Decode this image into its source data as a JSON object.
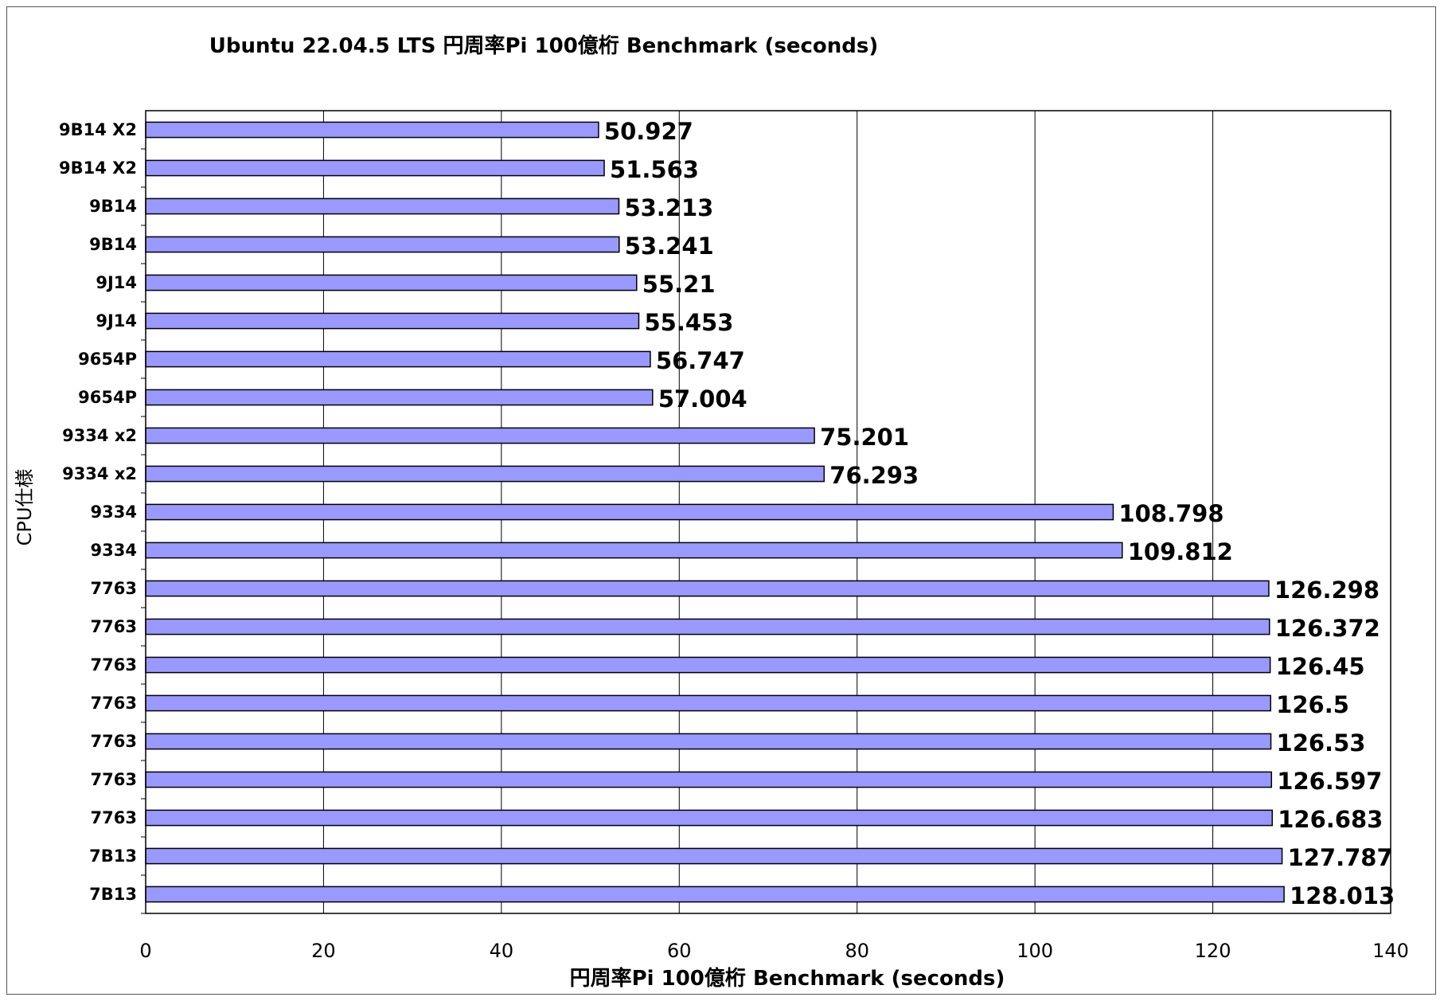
{
  "chart_data": {
    "type": "bar",
    "orientation": "horizontal",
    "title": "Ubuntu 22.04.5 LTS 円周率Pi  100億桁 Benchmark (seconds)",
    "xlabel": "円周率Pi 100億桁 Benchmark (seconds)",
    "ylabel": "CPU仕様",
    "xlim": [
      0,
      140
    ],
    "xticks": [
      0,
      20,
      40,
      60,
      80,
      100,
      120,
      140
    ],
    "grid": "vertical",
    "legend": "none",
    "bar_color": "#9999ff",
    "categories": [
      "9B14 X2",
      "9B14 X2",
      "9B14",
      "9B14",
      "9J14",
      "9J14",
      "9654P",
      "9654P",
      "9334 x2",
      "9334 x2",
      "9334",
      "9334",
      "7763",
      "7763",
      "7763",
      "7763",
      "7763",
      "7763",
      "7763",
      "7B13",
      "7B13"
    ],
    "values": [
      50.927,
      51.563,
      53.213,
      53.241,
      55.21,
      55.453,
      56.747,
      57.004,
      75.201,
      76.293,
      108.798,
      109.812,
      126.298,
      126.372,
      126.45,
      126.5,
      126.53,
      126.597,
      126.683,
      127.787,
      128.013
    ],
    "data_labels": [
      "50.927",
      "51.563",
      "53.213",
      "53.241",
      "55.21",
      "55.453",
      "56.747",
      "57.004",
      "75.201",
      "76.293",
      "108.798",
      "109.812",
      "126.298",
      "126.372",
      "126.45",
      "126.5",
      "126.53",
      "126.597",
      "126.683",
      "127.787",
      "128.013"
    ]
  }
}
